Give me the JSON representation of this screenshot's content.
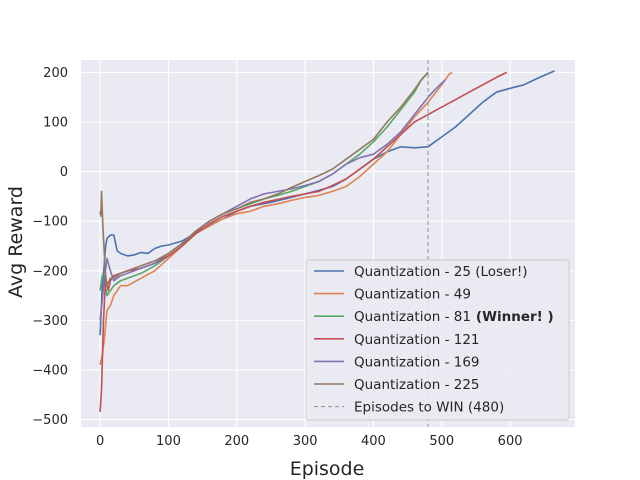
{
  "chart_data": {
    "type": "line",
    "title": "",
    "xlabel": "Episode",
    "ylabel": "Avg Reward",
    "xlim": [
      -28,
      695
    ],
    "ylim": [
      -515,
      225
    ],
    "xticks": [
      0,
      100,
      200,
      300,
      400,
      500,
      600
    ],
    "yticks": [
      -500,
      -400,
      -300,
      -200,
      -100,
      0,
      100,
      200
    ],
    "ytick_labels": [
      "−500",
      "−400",
      "−300",
      "−200",
      "−100",
      "0",
      "100",
      "200"
    ],
    "grid": true,
    "legend_position": "lower-right",
    "series": [
      {
        "name": "Quantization - 25 (Loser!)",
        "color": "#4c72b0",
        "points": [
          [
            0,
            -330
          ],
          [
            3,
            -230
          ],
          [
            6,
            -190
          ],
          [
            8,
            -150
          ],
          [
            10,
            -135
          ],
          [
            15,
            -128
          ],
          [
            20,
            -128
          ],
          [
            25,
            -160
          ],
          [
            30,
            -165
          ],
          [
            40,
            -170
          ],
          [
            50,
            -168
          ],
          [
            60,
            -163
          ],
          [
            70,
            -165
          ],
          [
            80,
            -155
          ],
          [
            90,
            -150
          ],
          [
            100,
            -148
          ],
          [
            120,
            -140
          ],
          [
            150,
            -115
          ],
          [
            180,
            -95
          ],
          [
            200,
            -80
          ],
          [
            220,
            -70
          ],
          [
            250,
            -62
          ],
          [
            280,
            -52
          ],
          [
            300,
            -45
          ],
          [
            320,
            -38
          ],
          [
            340,
            -30
          ],
          [
            360,
            -15
          ],
          [
            380,
            5
          ],
          [
            400,
            25
          ],
          [
            420,
            40
          ],
          [
            440,
            50
          ],
          [
            460,
            48
          ],
          [
            480,
            50
          ],
          [
            490,
            60
          ],
          [
            500,
            70
          ],
          [
            520,
            90
          ],
          [
            540,
            115
          ],
          [
            560,
            140
          ],
          [
            580,
            160
          ],
          [
            600,
            168
          ],
          [
            620,
            175
          ],
          [
            640,
            188
          ],
          [
            660,
            200
          ],
          [
            665,
            203
          ]
        ]
      },
      {
        "name": "Quantization - 49",
        "color": "#dd8452",
        "points": [
          [
            0,
            -390
          ],
          [
            3,
            -370
          ],
          [
            6,
            -340
          ],
          [
            10,
            -280
          ],
          [
            15,
            -270
          ],
          [
            20,
            -250
          ],
          [
            30,
            -230
          ],
          [
            40,
            -230
          ],
          [
            60,
            -215
          ],
          [
            80,
            -200
          ],
          [
            100,
            -175
          ],
          [
            120,
            -150
          ],
          [
            140,
            -125
          ],
          [
            160,
            -110
          ],
          [
            180,
            -95
          ],
          [
            200,
            -85
          ],
          [
            220,
            -80
          ],
          [
            240,
            -70
          ],
          [
            260,
            -65
          ],
          [
            280,
            -58
          ],
          [
            300,
            -52
          ],
          [
            320,
            -48
          ],
          [
            340,
            -40
          ],
          [
            360,
            -30
          ],
          [
            380,
            -10
          ],
          [
            400,
            15
          ],
          [
            420,
            40
          ],
          [
            440,
            75
          ],
          [
            460,
            110
          ],
          [
            480,
            140
          ],
          [
            500,
            175
          ],
          [
            510,
            195
          ],
          [
            515,
            200
          ]
        ]
      },
      {
        "name": "Quantization - 81",
        "bold_suffix": "(Winner! )",
        "color": "#55a868",
        "points": [
          [
            0,
            -240
          ],
          [
            3,
            -210
          ],
          [
            6,
            -215
          ],
          [
            10,
            -250
          ],
          [
            15,
            -240
          ],
          [
            20,
            -230
          ],
          [
            30,
            -220
          ],
          [
            40,
            -215
          ],
          [
            60,
            -205
          ],
          [
            80,
            -190
          ],
          [
            100,
            -170
          ],
          [
            120,
            -150
          ],
          [
            140,
            -120
          ],
          [
            160,
            -100
          ],
          [
            180,
            -85
          ],
          [
            200,
            -75
          ],
          [
            220,
            -65
          ],
          [
            240,
            -55
          ],
          [
            260,
            -48
          ],
          [
            280,
            -40
          ],
          [
            300,
            -30
          ],
          [
            320,
            -20
          ],
          [
            340,
            -5
          ],
          [
            360,
            15
          ],
          [
            380,
            35
          ],
          [
            400,
            60
          ],
          [
            420,
            90
          ],
          [
            440,
            125
          ],
          [
            460,
            160
          ],
          [
            470,
            185
          ],
          [
            480,
            200
          ]
        ]
      },
      {
        "name": "Quantization - 121",
        "color": "#c44e52",
        "points": [
          [
            0,
            -485
          ],
          [
            2,
            -440
          ],
          [
            5,
            -300
          ],
          [
            8,
            -215
          ],
          [
            12,
            -240
          ],
          [
            15,
            -220
          ],
          [
            20,
            -210
          ],
          [
            30,
            -205
          ],
          [
            40,
            -200
          ],
          [
            60,
            -195
          ],
          [
            80,
            -185
          ],
          [
            100,
            -170
          ],
          [
            120,
            -150
          ],
          [
            140,
            -125
          ],
          [
            160,
            -105
          ],
          [
            180,
            -90
          ],
          [
            200,
            -80
          ],
          [
            220,
            -70
          ],
          [
            240,
            -62
          ],
          [
            260,
            -56
          ],
          [
            280,
            -50
          ],
          [
            300,
            -45
          ],
          [
            320,
            -40
          ],
          [
            340,
            -28
          ],
          [
            360,
            -15
          ],
          [
            380,
            5
          ],
          [
            400,
            25
          ],
          [
            420,
            50
          ],
          [
            440,
            75
          ],
          [
            460,
            100
          ],
          [
            480,
            115
          ],
          [
            500,
            130
          ],
          [
            520,
            145
          ],
          [
            540,
            160
          ],
          [
            560,
            175
          ],
          [
            580,
            190
          ],
          [
            595,
            200
          ]
        ]
      },
      {
        "name": "Quantization - 169",
        "color": "#8172b3",
        "points": [
          [
            0,
            -300
          ],
          [
            3,
            -260
          ],
          [
            6,
            -220
          ],
          [
            10,
            -175
          ],
          [
            15,
            -200
          ],
          [
            20,
            -220
          ],
          [
            30,
            -210
          ],
          [
            40,
            -205
          ],
          [
            60,
            -195
          ],
          [
            80,
            -185
          ],
          [
            100,
            -165
          ],
          [
            120,
            -145
          ],
          [
            140,
            -120
          ],
          [
            160,
            -100
          ],
          [
            180,
            -85
          ],
          [
            200,
            -70
          ],
          [
            220,
            -55
          ],
          [
            240,
            -45
          ],
          [
            260,
            -40
          ],
          [
            280,
            -35
          ],
          [
            300,
            -28
          ],
          [
            320,
            -20
          ],
          [
            340,
            -5
          ],
          [
            360,
            15
          ],
          [
            380,
            28
          ],
          [
            400,
            35
          ],
          [
            420,
            55
          ],
          [
            440,
            80
          ],
          [
            460,
            115
          ],
          [
            480,
            150
          ],
          [
            490,
            165
          ],
          [
            505,
            185
          ]
        ]
      },
      {
        "name": "Quantization - 225",
        "color": "#937860",
        "points": [
          [
            0,
            -80
          ],
          [
            1,
            -90
          ],
          [
            2,
            -40
          ],
          [
            4,
            -110
          ],
          [
            6,
            -160
          ],
          [
            8,
            -210
          ],
          [
            10,
            -230
          ],
          [
            15,
            -215
          ],
          [
            20,
            -215
          ],
          [
            30,
            -205
          ],
          [
            40,
            -200
          ],
          [
            60,
            -190
          ],
          [
            80,
            -180
          ],
          [
            100,
            -165
          ],
          [
            120,
            -145
          ],
          [
            140,
            -120
          ],
          [
            160,
            -100
          ],
          [
            180,
            -85
          ],
          [
            200,
            -75
          ],
          [
            220,
            -62
          ],
          [
            240,
            -55
          ],
          [
            260,
            -45
          ],
          [
            280,
            -32
          ],
          [
            300,
            -20
          ],
          [
            320,
            -8
          ],
          [
            340,
            5
          ],
          [
            360,
            25
          ],
          [
            380,
            45
          ],
          [
            400,
            65
          ],
          [
            420,
            100
          ],
          [
            440,
            130
          ],
          [
            460,
            165
          ],
          [
            470,
            185
          ],
          [
            480,
            200
          ]
        ]
      }
    ],
    "reference_line": {
      "name": "Episodes to WIN (480)",
      "x": 480,
      "color": "#999999"
    }
  }
}
